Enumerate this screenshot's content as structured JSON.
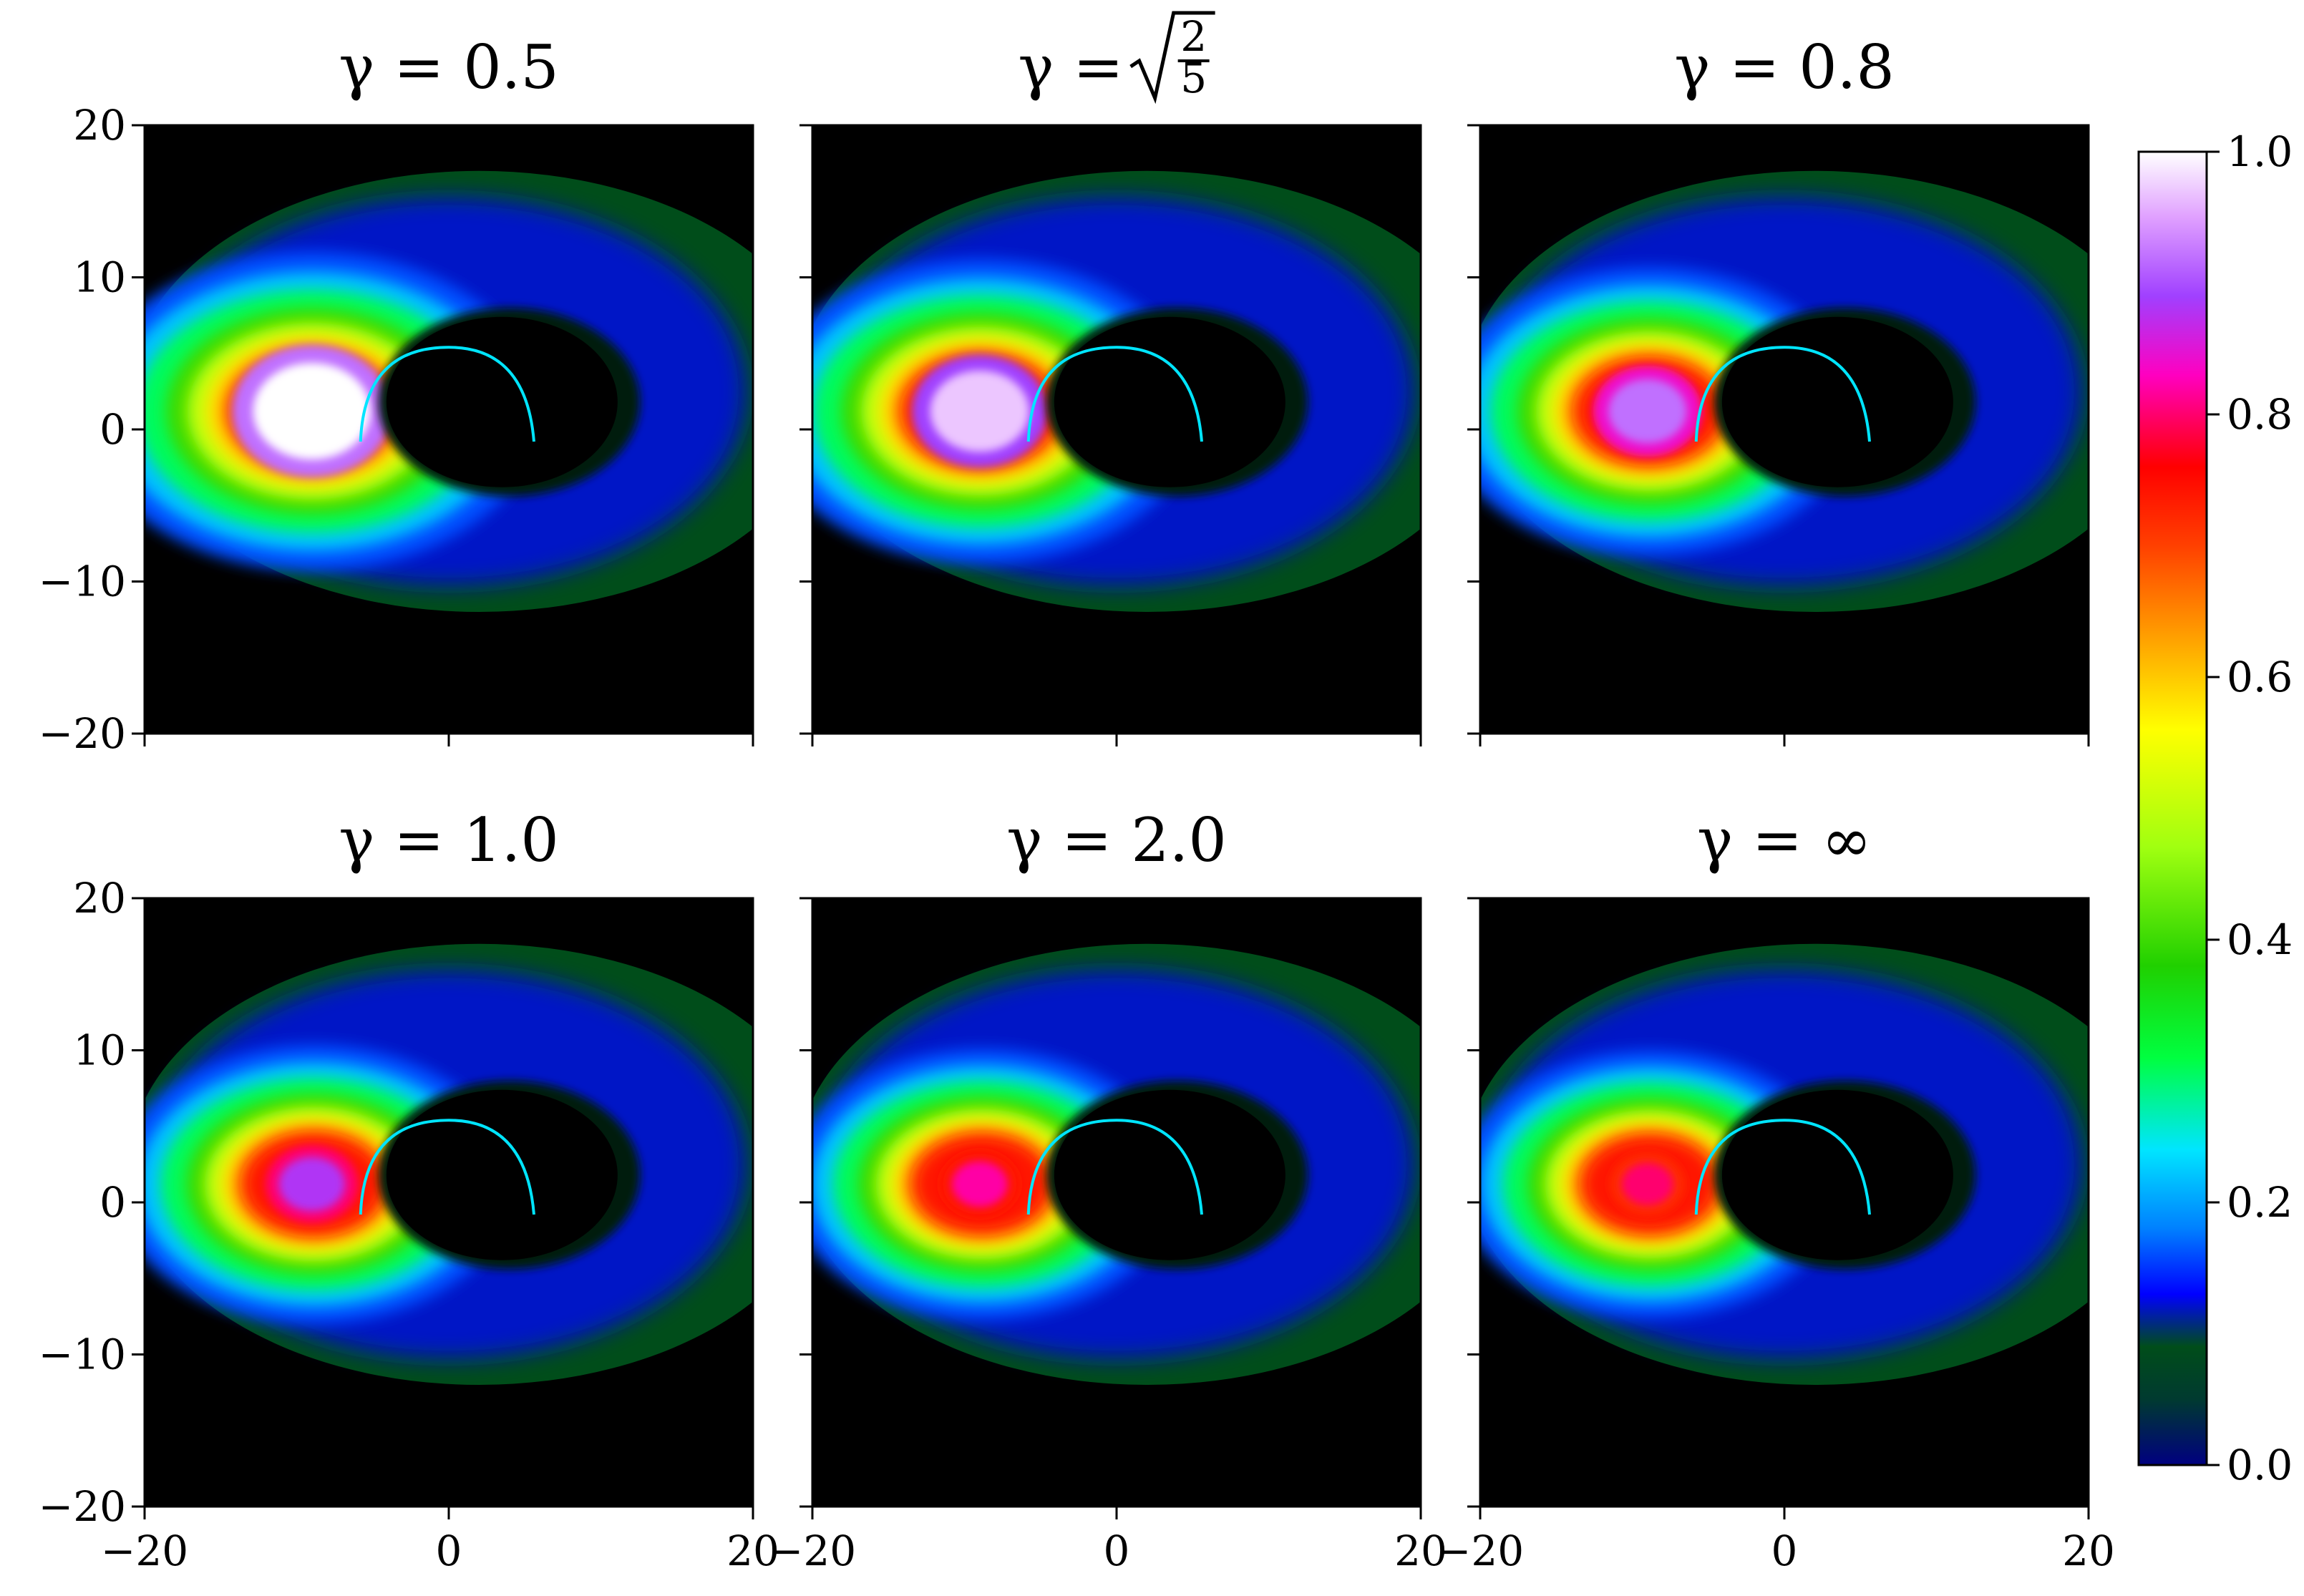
{
  "chart_data": {
    "type": "heatmap",
    "layout": {
      "rows": 2,
      "cols": 3
    },
    "panels": [
      {
        "title": "γ = 0.5",
        "peak_level": 1.0,
        "peak_extent": 1.0
      },
      {
        "title": "γ = √(2/5)",
        "peak_level": 0.97,
        "peak_extent": 0.82
      },
      {
        "title": "γ = 0.8",
        "peak_level": 0.92,
        "peak_extent": 0.62
      },
      {
        "title": "γ = 1.0",
        "peak_level": 0.88,
        "peak_extent": 0.5
      },
      {
        "title": "γ = 2.0",
        "peak_level": 0.82,
        "peak_extent": 0.4
      },
      {
        "title": "γ = ∞",
        "peak_level": 0.8,
        "peak_extent": 0.36
      }
    ],
    "xlim": [
      -20,
      20
    ],
    "ylim": [
      -20,
      20
    ],
    "xticks": [
      -20,
      0,
      20
    ],
    "yticks": [
      20,
      10,
      0,
      -10,
      -20
    ],
    "xtick_labels": [
      "−20",
      "0",
      "20"
    ],
    "ytick_labels": [
      "20",
      "10",
      "0",
      "−10",
      "−20"
    ],
    "xlabel": "",
    "ylabel": "",
    "colorbar": {
      "range": [
        0,
        1
      ],
      "ticks": [
        0.0,
        0.2,
        0.4,
        0.6,
        0.8,
        1.0
      ],
      "tick_labels": [
        "0.0",
        "0.2",
        "0.4",
        "0.6",
        "0.8",
        "1.0"
      ],
      "colormap": "gist_ncar"
    }
  },
  "colors": {
    "background": "#000000",
    "colormap_stops": [
      "#000080",
      "#004d1a",
      "#0a0aff",
      "#00e5ff",
      "#00ff40",
      "#a0ff10",
      "#ffff00",
      "#ffa000",
      "#ff0000",
      "#ff00e0",
      "#a040ff",
      "#ffffff"
    ]
  }
}
